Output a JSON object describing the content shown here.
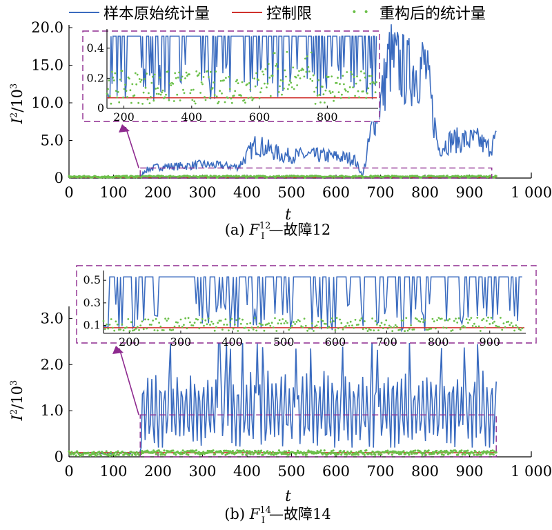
{
  "legend": {
    "items": [
      {
        "label": "样本原始统计量",
        "color": "#3A6BBF",
        "kind": "line"
      },
      {
        "label": "控制限",
        "color": "#D0312D",
        "kind": "line"
      },
      {
        "label": "重构后的统计量",
        "color": "#6CC04A",
        "kind": "dot"
      }
    ]
  },
  "chart_data": [
    {
      "panel": "a",
      "type": "line",
      "caption_prefix": "(a) ",
      "caption_letter": "F",
      "caption_sub": "I",
      "caption_sup": "12",
      "caption_suffix": "—故障12",
      "xlabel": "t",
      "ylabel_main": "I",
      "ylabel_sup1": "2",
      "ylabel_tail": "/10",
      "ylabel_sup2": "3",
      "xlim": [
        0,
        1000
      ],
      "ylim": [
        0,
        20
      ],
      "xticks": [
        0,
        100,
        200,
        300,
        400,
        500,
        600,
        700,
        800,
        900,
        1000
      ],
      "xtick_labels": [
        "0",
        "100",
        "200",
        "300",
        "400",
        "500",
        "600",
        "700",
        "800",
        "900",
        "1 000"
      ],
      "yticks": [
        0,
        5,
        10,
        15,
        20
      ],
      "ytick_labels": [
        "0",
        "5.0",
        "10.0",
        "15.0",
        "20.0"
      ],
      "fault_start": 160,
      "series": [
        {
          "name": "样本原始统计量",
          "color": "#3A6BBF",
          "anchors": [
            [
              0,
              0.1
            ],
            [
              160,
              0.1
            ],
            [
              170,
              1.0
            ],
            [
              200,
              1.5
            ],
            [
              260,
              1.6
            ],
            [
              300,
              1.8
            ],
            [
              380,
              1.5
            ],
            [
              420,
              4.5
            ],
            [
              480,
              3.0
            ],
            [
              560,
              3.0
            ],
            [
              640,
              2.6
            ],
            [
              660,
              0.3
            ],
            [
              685,
              8.0
            ],
            [
              700,
              10.0
            ],
            [
              720,
              16.0
            ],
            [
              760,
              14.0
            ],
            [
              800,
              15.0
            ],
            [
              830,
              4.0
            ],
            [
              860,
              5.0
            ],
            [
              920,
              5.0
            ],
            [
              940,
              4.0
            ],
            [
              960,
              5.0
            ]
          ]
        },
        {
          "name": "控制限",
          "color": "#D0312D",
          "value": 0.08
        },
        {
          "name": "重构后的统计量",
          "color": "#6CC04A",
          "level": 0.25
        }
      ],
      "inset": {
        "xlim": [
          150,
          950
        ],
        "ylim": [
          0,
          0.5
        ],
        "xticks": [
          200,
          400,
          600,
          800
        ],
        "xtick_labels": [
          "200",
          "400",
          "600",
          "800"
        ],
        "yticks": [
          0,
          0.2,
          0.4
        ],
        "ytick_labels": [
          "0",
          "0.2",
          "0.4"
        ],
        "control_limit": 0.07,
        "zoom_range": [
          160,
          950
        ],
        "zoom_y": 0.6
      }
    },
    {
      "panel": "b",
      "type": "line",
      "caption_prefix": "(b) ",
      "caption_letter": "F",
      "caption_sub": "I",
      "caption_sup": "14",
      "caption_suffix": "—故障14",
      "xlabel": "t",
      "ylabel_main": "I",
      "ylabel_sup1": "2",
      "ylabel_tail": "/10",
      "ylabel_sup2": "3",
      "xlim": [
        0,
        1000
      ],
      "ylim": [
        0,
        3.2
      ],
      "xticks": [
        0,
        100,
        200,
        300,
        400,
        500,
        600,
        700,
        800,
        900,
        1000
      ],
      "xtick_labels": [
        "0",
        "100",
        "200",
        "300",
        "400",
        "500",
        "600",
        "700",
        "800",
        "900",
        "1 000"
      ],
      "yticks": [
        0,
        1.0,
        2.0,
        3.0
      ],
      "ytick_labels": [
        "0",
        "1.0",
        "2.0",
        "3.0"
      ],
      "fault_start": 160,
      "series": [
        {
          "name": "样本原始统计量",
          "color": "#3A6BBF",
          "low": 0.3,
          "high": 1.7,
          "peak": 2.3
        },
        {
          "name": "控制限",
          "color": "#D0312D",
          "value": 0.09
        },
        {
          "name": "重构后的统计量",
          "color": "#6CC04A",
          "level": 0.1
        }
      ],
      "inset": {
        "xlim": [
          150,
          970
        ],
        "ylim": [
          0.03,
          0.55
        ],
        "xticks": [
          200,
          300,
          400,
          500,
          600,
          700,
          800,
          900
        ],
        "xtick_labels": [
          "200",
          "300",
          "400",
          "500",
          "600",
          "700",
          "800",
          "900"
        ],
        "yticks": [
          0.1,
          0.3,
          0.5
        ],
        "ytick_labels": [
          "0.1",
          "0.3",
          "0.5"
        ],
        "control_limit": 0.08,
        "zoom_range": [
          160,
          960
        ],
        "zoom_y": 0.55
      }
    }
  ]
}
